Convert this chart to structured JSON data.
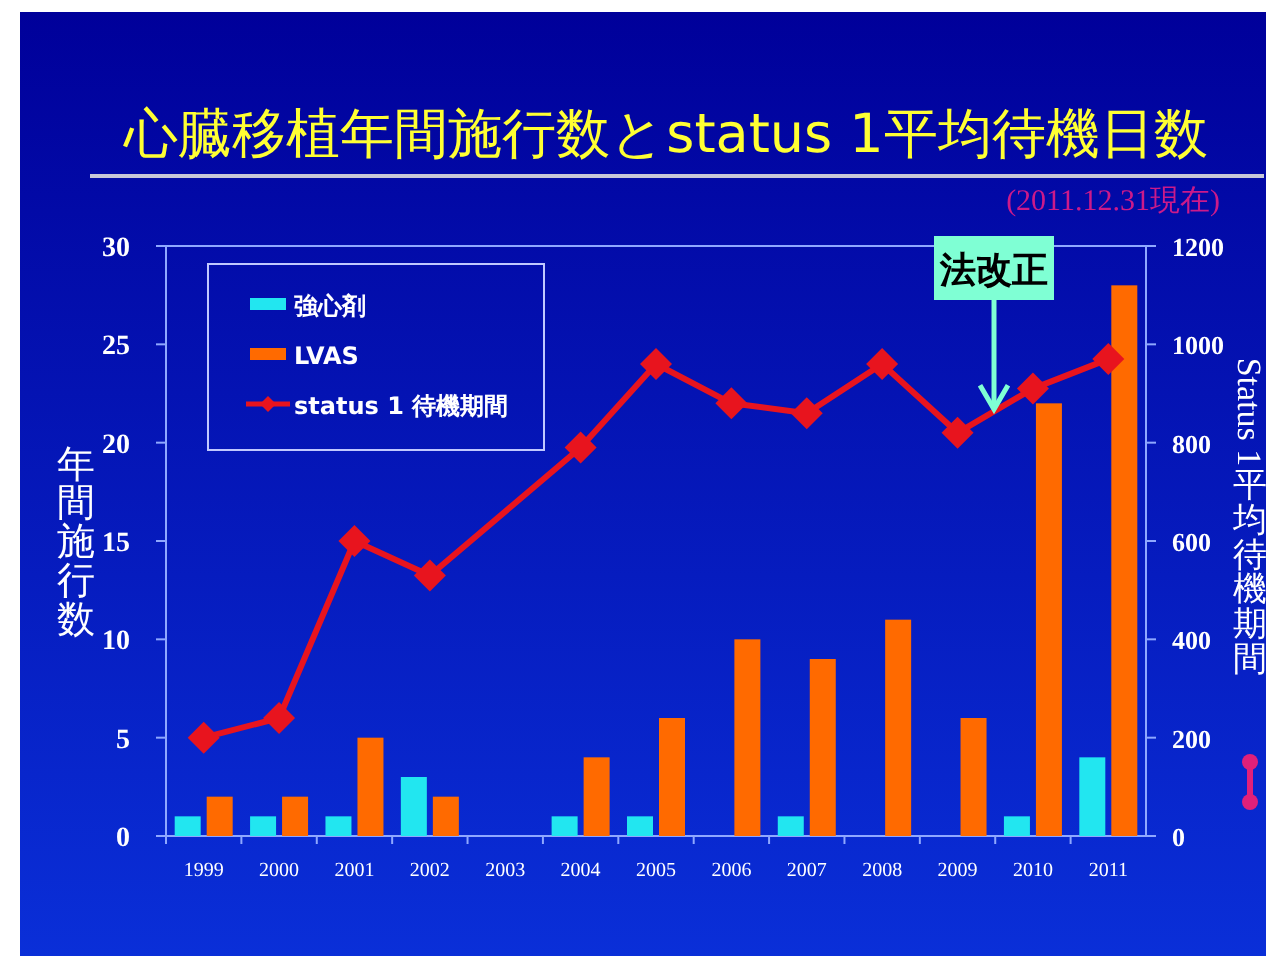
{
  "chart_data": {
    "type": "bar",
    "title": "心臓移植年間施行数とstatus 1平均待機日数",
    "subtitle": "(2011.12.31現在)",
    "ylabel": "年間施行数",
    "y2label": "Status 1平均待機期間",
    "annotations": [
      {
        "text": "法改正",
        "y": 21.7
      }
    ],
    "categories": [
      "1999",
      "2000",
      "2001",
      "2002",
      "2003",
      "2004",
      "2005",
      "2006",
      "2007",
      "2008",
      "2009",
      "2010",
      "2011"
    ],
    "series": [
      {
        "name": "強心剤",
        "color": "#22e6f0",
        "values": [
          1,
          1,
          1,
          3,
          0,
          1,
          1,
          0,
          1,
          0,
          0,
          1,
          4
        ]
      },
      {
        "name": "LVAS",
        "color": "#ff6a00",
        "values": [
          2,
          2,
          5,
          2,
          0,
          4,
          6,
          10,
          9,
          11,
          6,
          22,
          28
        ]
      },
      {
        "name": "status 1 待機期間",
        "type": "line",
        "axis": "y2",
        "color": "#e8141e",
        "marker": "diamond",
        "values": [
          200,
          240,
          600,
          530,
          null,
          790,
          960,
          880,
          860,
          960,
          820,
          910,
          970
        ]
      }
    ],
    "ylim": [
      0,
      30
    ],
    "yticks": [
      0,
      5,
      10,
      15,
      20,
      25,
      30
    ],
    "y2lim": [
      0,
      1200
    ],
    "y2ticks": [
      0,
      200,
      400,
      600,
      800,
      1000,
      1200
    ],
    "legend": "top left",
    "grid": false
  }
}
